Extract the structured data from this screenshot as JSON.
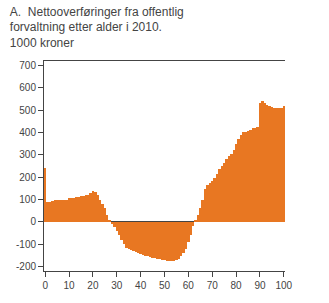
{
  "chart_data": {
    "type": "bar",
    "title": "A.  Nettooverføringer fra offentlig\nforvaltning etter alder i 2010.\n1000 kroner",
    "x": [
      0,
      1,
      2,
      3,
      4,
      5,
      6,
      7,
      8,
      9,
      10,
      11,
      12,
      13,
      14,
      15,
      16,
      17,
      18,
      19,
      20,
      21,
      22,
      23,
      24,
      25,
      26,
      27,
      28,
      29,
      30,
      31,
      32,
      33,
      34,
      35,
      36,
      37,
      38,
      39,
      40,
      41,
      42,
      43,
      44,
      45,
      46,
      47,
      48,
      49,
      50,
      51,
      52,
      53,
      54,
      55,
      56,
      57,
      58,
      59,
      60,
      61,
      62,
      63,
      64,
      65,
      66,
      67,
      68,
      69,
      70,
      71,
      72,
      73,
      74,
      75,
      76,
      77,
      78,
      79,
      80,
      81,
      82,
      83,
      84,
      85,
      86,
      87,
      88,
      89,
      90,
      91,
      92,
      93,
      94,
      95,
      96,
      97,
      98,
      99,
      100
    ],
    "values": [
      240,
      90,
      90,
      95,
      100,
      100,
      100,
      100,
      100,
      100,
      105,
      105,
      105,
      110,
      110,
      115,
      115,
      120,
      120,
      130,
      140,
      135,
      120,
      100,
      80,
      60,
      30,
      10,
      -10,
      -25,
      -40,
      -60,
      -80,
      -100,
      -115,
      -120,
      -125,
      -130,
      -135,
      -140,
      -145,
      -148,
      -152,
      -155,
      -158,
      -160,
      -163,
      -165,
      -168,
      -170,
      -172,
      -173,
      -174,
      -175,
      -175,
      -172,
      -165,
      -155,
      -140,
      -120,
      -90,
      -60,
      -20,
      10,
      30,
      60,
      100,
      145,
      165,
      175,
      185,
      195,
      215,
      235,
      250,
      265,
      280,
      295,
      305,
      320,
      350,
      370,
      390,
      400,
      400,
      405,
      410,
      420,
      420,
      425,
      530,
      540,
      530,
      525,
      520,
      515,
      510,
      510,
      510,
      510,
      520
    ],
    "color": "#E87722",
    "xlim": [
      -0.5,
      100.5
    ],
    "xticks": [
      0,
      10,
      20,
      30,
      40,
      50,
      60,
      70,
      80,
      90,
      100
    ],
    "ylim": [
      -220,
      720
    ],
    "yticks": [
      -200,
      -100,
      0,
      100,
      200,
      300,
      400,
      500,
      600,
      700
    ],
    "y2lim": [
      -220,
      720
    ],
    "y2ticks": [
      -200,
      -100,
      0,
      100,
      200,
      300,
      400,
      500,
      600,
      700
    ],
    "grid": false
  }
}
